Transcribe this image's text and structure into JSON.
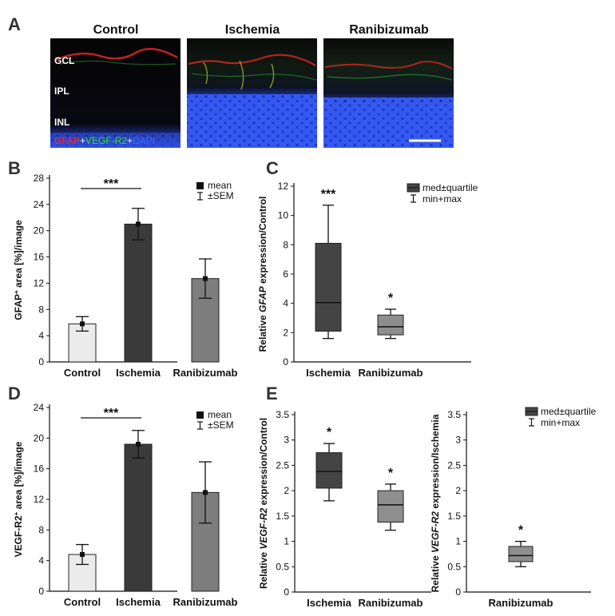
{
  "panel_labels": [
    "A",
    "B",
    "C",
    "D",
    "E"
  ],
  "images": {
    "titles": [
      "Control",
      "Ischemia",
      "Ranibizumab"
    ],
    "layer_labels": [
      "GCL",
      "IPL",
      "INL"
    ],
    "stain": {
      "parts": [
        "GFAP",
        "+",
        "VEGF-R2",
        "+",
        "DAPI"
      ],
      "colors": [
        "#ff2a2a",
        "#ffffff",
        "#33dd33",
        "#ffffff",
        "#3b6cff"
      ]
    }
  },
  "colors": {
    "control": "#ebebeb",
    "ischemia": "#3a3a3a",
    "ranibizumab": "#7d7d7d",
    "box_dark": "#444444",
    "box_light": "#8e8e8e"
  },
  "chart_data": [
    {
      "id": "B",
      "type": "bar",
      "categories": [
        "Control",
        "Ischemia",
        "Ranibizumab"
      ],
      "values": [
        5.8,
        21.0,
        12.7
      ],
      "sem": [
        1.1,
        2.4,
        3.0
      ],
      "ylabel_parts": [
        "GFAP",
        "+",
        " area [%]/image"
      ],
      "ylim": [
        0,
        28
      ],
      "yticks": [
        "0",
        "4",
        "8",
        "12",
        "16",
        "20",
        "24",
        "28"
      ],
      "significance": "***",
      "legend": [
        "mean",
        "±SEM"
      ]
    },
    {
      "id": "C",
      "type": "box",
      "categories": [
        "Ischemia",
        "Ranibizumab"
      ],
      "boxes": [
        {
          "min": 1.6,
          "q1": 2.1,
          "median": 4.05,
          "q3": 8.1,
          "max": 10.7
        },
        {
          "min": 1.6,
          "q1": 1.85,
          "median": 2.4,
          "q3": 3.2,
          "max": 3.6
        }
      ],
      "ylabel_parts": [
        "Relative ",
        "GFAP",
        " expression/Control"
      ],
      "ylim": [
        0,
        12
      ],
      "yticks": [
        "0",
        "2",
        "4",
        "6",
        "8",
        "10",
        "12"
      ],
      "significance": [
        "***",
        "*"
      ],
      "legend": [
        "med±quartile",
        "min+max"
      ]
    },
    {
      "id": "D",
      "type": "bar",
      "categories": [
        "Control",
        "Ischemia",
        "Ranibizumab"
      ],
      "values": [
        4.8,
        19.2,
        12.9
      ],
      "sem": [
        1.3,
        1.8,
        4.0
      ],
      "ylabel_parts": [
        "VEGF-R2",
        "+",
        " area [%]/image"
      ],
      "ylim": [
        0,
        24
      ],
      "yticks": [
        "0",
        "4",
        "8",
        "12",
        "16",
        "20",
        "24"
      ],
      "significance": "***",
      "legend": [
        "mean",
        "±SEM"
      ]
    },
    {
      "id": "E1",
      "type": "box",
      "categories": [
        "Ischemia",
        "Ranibizumab"
      ],
      "boxes": [
        {
          "min": 1.8,
          "q1": 2.05,
          "median": 2.38,
          "q3": 2.75,
          "max": 2.93
        },
        {
          "min": 1.22,
          "q1": 1.38,
          "median": 1.72,
          "q3": 2.0,
          "max": 2.13
        }
      ],
      "ylabel_parts": [
        "Relative ",
        "VEGF-R2",
        " expression/Control"
      ],
      "ylim": [
        0,
        3.5
      ],
      "yticks": [
        "0",
        "0.5",
        "1",
        "1.5",
        "2",
        "2.5",
        "3",
        "3.5"
      ],
      "significance": [
        "*",
        "*"
      ]
    },
    {
      "id": "E2",
      "type": "box",
      "categories": [
        "Ranibizumab"
      ],
      "boxes": [
        {
          "min": 0.5,
          "q1": 0.6,
          "median": 0.72,
          "q3": 0.9,
          "max": 1.0
        }
      ],
      "ylabel_parts": [
        "Relative ",
        "VEGF-R2",
        " expression/Ischemia"
      ],
      "ylim": [
        0,
        3.5
      ],
      "yticks": [
        "0",
        "0.5",
        "1",
        "1.5",
        "2",
        "2.5",
        "3",
        "3.5"
      ],
      "significance": [
        "*"
      ],
      "legend": [
        "med±quartile",
        "min+max"
      ]
    }
  ]
}
